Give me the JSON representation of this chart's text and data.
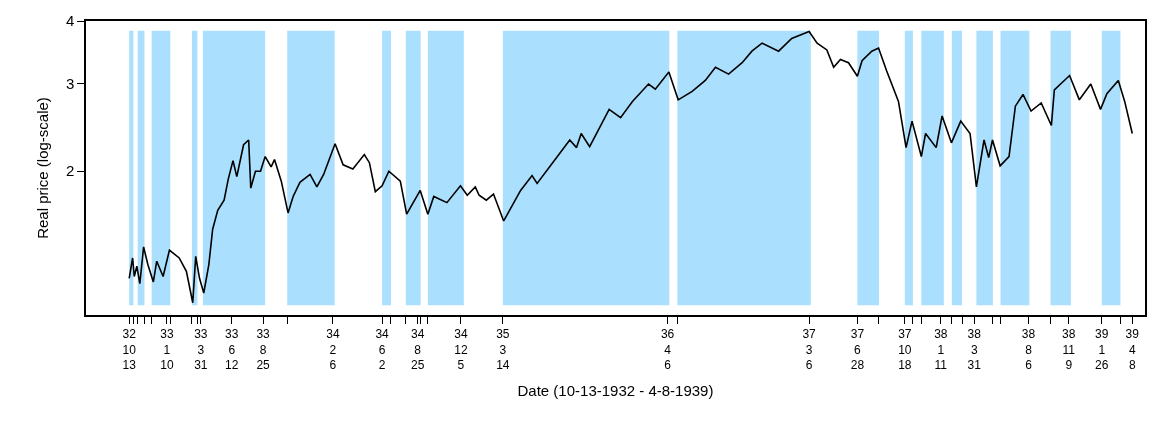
{
  "chart_data": {
    "type": "line",
    "xlabel": "Date (10-13-1932 - 4-8-1939)",
    "ylabel": "Real price (log-scale)",
    "log": true,
    "grid": false,
    "marker": "none",
    "line_style": "solid",
    "xlim": [
      "1932-07-03",
      "1939-05-08"
    ],
    "ylim": [
      1.03,
      4
    ],
    "yticks": [
      2,
      3,
      4
    ],
    "xticks": [
      {
        "value": "1932-10-13",
        "label": "32\n10\n13"
      },
      {
        "value": "1933-01-10",
        "label": "33\n1\n10"
      },
      {
        "value": "1933-03-31",
        "label": "33\n3\n31"
      },
      {
        "value": "1933-06-12",
        "label": "33\n6\n12"
      },
      {
        "value": "1933-08-25",
        "label": "33\n8\n25"
      },
      {
        "value": "1934-02-06",
        "label": "34\n2\n6"
      },
      {
        "value": "1934-06-02",
        "label": "34\n6\n2"
      },
      {
        "value": "1934-08-25",
        "label": "34\n8\n25"
      },
      {
        "value": "1934-12-05",
        "label": "34\n12\n5"
      },
      {
        "value": "1935-03-14",
        "label": "35\n3\n14"
      },
      {
        "value": "1936-04-06",
        "label": "36\n4\n6"
      },
      {
        "value": "1937-03-06",
        "label": "37\n3\n6"
      },
      {
        "value": "1937-06-28",
        "label": "37\n6\n28"
      },
      {
        "value": "1937-10-18",
        "label": "37\n10\n18"
      },
      {
        "value": "1938-01-11",
        "label": "38\n1\n11"
      },
      {
        "value": "1938-03-31",
        "label": "38\n3\n31"
      },
      {
        "value": "1938-08-06",
        "label": "38\n8\n6"
      },
      {
        "value": "1938-11-09",
        "label": "38\n11\n9"
      },
      {
        "value": "1939-01-26",
        "label": "39\n1\n26"
      },
      {
        "value": "1939-04-08",
        "label": "39\n4\n8"
      },
      {
        "value": "1932-10-23",
        "label": null
      },
      {
        "value": "1932-11-02",
        "label": null
      },
      {
        "value": "1932-11-18",
        "label": null
      },
      {
        "value": "1932-12-05",
        "label": null
      },
      {
        "value": "1933-01-18",
        "label": null
      },
      {
        "value": "1933-03-10",
        "label": null
      },
      {
        "value": "1933-03-23",
        "label": null
      },
      {
        "value": "1933-10-21",
        "label": null
      },
      {
        "value": "1934-06-23",
        "label": null
      },
      {
        "value": "1934-07-28",
        "label": null
      },
      {
        "value": "1934-09-01",
        "label": null
      },
      {
        "value": "1934-09-18",
        "label": null
      },
      {
        "value": "1936-04-29",
        "label": null
      },
      {
        "value": "1937-08-18",
        "label": null
      },
      {
        "value": "1937-11-06",
        "label": null
      },
      {
        "value": "1937-11-26",
        "label": null
      },
      {
        "value": "1938-02-06",
        "label": null
      },
      {
        "value": "1938-03-02",
        "label": null
      },
      {
        "value": "1938-05-14",
        "label": null
      },
      {
        "value": "1938-06-01",
        "label": null
      },
      {
        "value": "1938-09-27",
        "label": null
      },
      {
        "value": "1939-03-11",
        "label": null
      }
    ],
    "bands": [
      {
        "axis": "x",
        "from": "1932-10-13",
        "to": "1932-10-23",
        "color": "#aadffd"
      },
      {
        "axis": "x",
        "from": "1932-11-02",
        "to": "1932-11-18",
        "color": "#aadffd"
      },
      {
        "axis": "x",
        "from": "1932-12-05",
        "to": "1933-01-18",
        "color": "#aadffd"
      },
      {
        "axis": "x",
        "from": "1933-03-10",
        "to": "1933-03-23",
        "color": "#aadffd"
      },
      {
        "axis": "x",
        "from": "1933-04-05",
        "to": "1933-08-30",
        "color": "#aadffd"
      },
      {
        "axis": "x",
        "from": "1933-10-21",
        "to": "1934-02-10",
        "color": "#aadffd"
      },
      {
        "axis": "x",
        "from": "1934-06-02",
        "to": "1934-06-23",
        "color": "#aadffd"
      },
      {
        "axis": "x",
        "from": "1934-07-28",
        "to": "1934-09-01",
        "color": "#aadffd"
      },
      {
        "axis": "x",
        "from": "1934-09-18",
        "to": "1934-12-12",
        "color": "#aadffd"
      },
      {
        "axis": "x",
        "from": "1935-03-14",
        "to": "1936-04-10",
        "color": "#aadffd"
      },
      {
        "axis": "x",
        "from": "1936-04-29",
        "to": "1937-03-10",
        "color": "#aadffd"
      },
      {
        "axis": "x",
        "from": "1937-06-28",
        "to": "1937-08-18",
        "color": "#aadffd"
      },
      {
        "axis": "x",
        "from": "1937-10-18",
        "to": "1937-11-06",
        "color": "#aadffd"
      },
      {
        "axis": "x",
        "from": "1937-11-26",
        "to": "1938-01-18",
        "color": "#aadffd"
      },
      {
        "axis": "x",
        "from": "1938-02-06",
        "to": "1938-03-02",
        "color": "#aadffd"
      },
      {
        "axis": "x",
        "from": "1938-04-05",
        "to": "1938-05-14",
        "color": "#aadffd"
      },
      {
        "axis": "x",
        "from": "1938-06-01",
        "to": "1938-08-08",
        "color": "#aadffd"
      },
      {
        "axis": "x",
        "from": "1938-09-27",
        "to": "1938-11-14",
        "color": "#aadffd"
      },
      {
        "axis": "x",
        "from": "1939-01-26",
        "to": "1939-03-11",
        "color": "#aadffd"
      }
    ],
    "x": [
      "1932-10-13",
      "1932-10-21",
      "1932-10-25",
      "1932-10-31",
      "1932-11-07",
      "1932-11-16",
      "1932-11-26",
      "1932-12-09",
      "1932-12-17",
      "1933-01-01",
      "1933-01-16",
      "1933-02-08",
      "1933-02-25",
      "1933-03-12",
      "1933-03-19",
      "1933-03-28",
      "1933-04-07",
      "1933-04-19",
      "1933-04-28",
      "1933-05-10",
      "1933-05-25",
      "1933-06-04",
      "1933-06-15",
      "1933-06-24",
      "1933-07-10",
      "1933-07-22",
      "1933-07-27",
      "1933-08-07",
      "1933-08-19",
      "1933-08-30",
      "1933-09-13",
      "1933-09-21",
      "1933-10-07",
      "1933-10-23",
      "1933-11-04",
      "1933-11-20",
      "1933-12-14",
      "1933-12-30",
      "1934-01-15",
      "1934-02-11",
      "1934-03-02",
      "1934-03-25",
      "1934-04-21",
      "1934-05-03",
      "1934-05-17",
      "1934-06-02",
      "1934-06-18",
      "1934-07-15",
      "1934-07-30",
      "1934-08-31",
      "1934-09-18",
      "1934-10-02",
      "1934-11-02",
      "1934-12-04",
      "1934-12-20",
      "1935-01-08",
      "1935-01-17",
      "1935-02-03",
      "1935-02-20",
      "1935-03-16",
      "1935-04-25",
      "1935-05-22",
      "1935-06-03",
      "1935-07-19",
      "1935-08-19",
      "1935-09-04",
      "1935-09-15",
      "1935-10-05",
      "1935-11-20",
      "1935-12-17",
      "1936-01-14",
      "1936-02-21",
      "1936-03-08",
      "1936-04-09",
      "1936-05-01",
      "1936-06-03",
      "1936-07-04",
      "1936-07-28",
      "1936-08-28",
      "1936-09-29",
      "1936-10-22",
      "1936-11-15",
      "1936-12-24",
      "1937-01-24",
      "1937-03-06",
      "1937-03-25",
      "1937-04-17",
      "1937-05-03",
      "1937-05-19",
      "1937-06-07",
      "1937-06-28",
      "1937-07-09",
      "1937-08-01",
      "1937-08-17",
      "1937-09-05",
      "1937-10-03",
      "1937-10-21",
      "1937-11-04",
      "1937-11-26",
      "1937-12-06",
      "1937-12-31",
      "1938-01-14",
      "1938-02-05",
      "1938-02-27",
      "1938-03-21",
      "1938-04-05",
      "1938-04-23",
      "1938-05-04",
      "1938-05-13",
      "1938-05-31",
      "1938-06-21",
      "1938-07-06",
      "1938-07-24",
      "1938-08-12",
      "1938-09-05",
      "1938-09-29",
      "1938-10-06",
      "1938-11-11",
      "1938-12-04",
      "1938-12-31",
      "1939-01-23",
      "1939-02-07",
      "1939-03-06",
      "1939-03-21",
      "1939-04-08"
    ],
    "series": [
      {
        "color": "#000000",
        "values": [
          1.22,
          1.34,
          1.23,
          1.29,
          1.19,
          1.41,
          1.3,
          1.2,
          1.32,
          1.23,
          1.39,
          1.34,
          1.26,
          1.09,
          1.35,
          1.22,
          1.14,
          1.3,
          1.53,
          1.67,
          1.75,
          1.93,
          2.1,
          1.95,
          2.26,
          2.31,
          1.85,
          2.0,
          2.0,
          2.14,
          2.04,
          2.11,
          1.91,
          1.65,
          1.78,
          1.9,
          1.97,
          1.86,
          1.97,
          2.27,
          2.06,
          2.02,
          2.16,
          2.08,
          1.82,
          1.87,
          2.0,
          1.91,
          1.64,
          1.83,
          1.64,
          1.78,
          1.73,
          1.87,
          1.79,
          1.86,
          1.79,
          1.75,
          1.8,
          1.59,
          1.83,
          1.96,
          1.89,
          2.13,
          2.31,
          2.23,
          2.38,
          2.24,
          2.66,
          2.56,
          2.76,
          2.99,
          2.92,
          3.16,
          2.78,
          2.89,
          3.04,
          3.23,
          3.13,
          3.3,
          3.48,
          3.61,
          3.48,
          3.69,
          3.81,
          3.61,
          3.5,
          3.23,
          3.35,
          3.3,
          3.1,
          3.33,
          3.48,
          3.53,
          3.18,
          2.76,
          2.23,
          2.52,
          2.14,
          2.38,
          2.23,
          2.58,
          2.28,
          2.52,
          2.38,
          1.86,
          2.31,
          2.13,
          2.31,
          2.05,
          2.14,
          2.7,
          2.85,
          2.64,
          2.74,
          2.47,
          2.91,
          3.11,
          2.78,
          2.99,
          2.66,
          2.86,
          3.04,
          2.76,
          2.38
        ]
      }
    ]
  }
}
